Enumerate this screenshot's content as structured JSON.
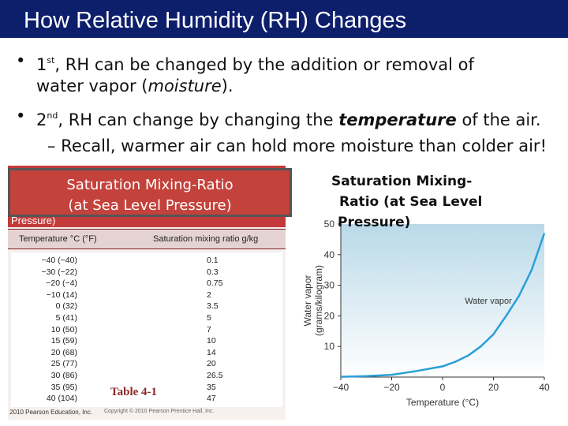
{
  "slide": {
    "title": "How Relative Humidity (RH) Changes",
    "bullets": [
      {
        "marker": "•",
        "ordinal": "1",
        "sup": "st",
        "rest": ", RH can be changed by the addition or removal of",
        "line2_pre": "water  vapor (",
        "line2_em": "moisture",
        "line2_post": ")."
      },
      {
        "marker": "•",
        "ordinal": "2",
        "sup": "nd",
        "pre": ", RH can change by changing the ",
        "em": "temperature",
        "post": " of the air."
      }
    ],
    "sub_bullet": "– Recall, warmer air can hold more moisture than colder air!"
  },
  "table": {
    "heading_label": "Saturation Mixing-Ratio\n(at Sea Level Pressure)",
    "band_label": "Pressure)",
    "col_temp": "Temperature °C (°F)",
    "col_ratio": "Saturation mixing ratio g/kg",
    "rows": [
      {
        "temp": "−40 (−40)",
        "ratio": "0.1"
      },
      {
        "temp": "−30 (−22)",
        "ratio": "0.3"
      },
      {
        "temp": "−20 (−4)",
        "ratio": "0.75"
      },
      {
        "temp": "−10 (14)",
        "ratio": "2"
      },
      {
        "temp": "0 (32)",
        "ratio": "3.5"
      },
      {
        "temp": "5 (41)",
        "ratio": "5"
      },
      {
        "temp": "10 (50)",
        "ratio": "7"
      },
      {
        "temp": "15 (59)",
        "ratio": "10"
      },
      {
        "temp": "20 (68)",
        "ratio": "14"
      },
      {
        "temp": "25 (77)",
        "ratio": "20"
      },
      {
        "temp": "30 (86)",
        "ratio": "26.5"
      },
      {
        "temp": "35 (95)",
        "ratio": "35"
      },
      {
        "temp": "40 (104)",
        "ratio": "47"
      }
    ],
    "caption": "Table 4-1",
    "copyright": "Copyright © 2010 Pearson Prentice Hall, Inc.",
    "copyright_left": "© 2010 Pearson Education, Inc."
  },
  "chart_heading": [
    "Saturation Mixing-",
    "Ratio  (at Sea Level",
    "Pressure)"
  ],
  "chart_data": {
    "type": "line",
    "xlabel": "Temperature (°C)",
    "ylabel": "Water vapor\n(grams/kilogram)",
    "xlim": [
      -40,
      40
    ],
    "ylim": [
      0,
      50
    ],
    "xticks": [
      -40,
      -20,
      0,
      20,
      40
    ],
    "yticks": [
      10,
      20,
      30,
      40,
      50
    ],
    "series": [
      {
        "name": "Water vapor",
        "x": [
          -40,
          -30,
          -20,
          -10,
          0,
          5,
          10,
          15,
          20,
          25,
          30,
          35,
          40
        ],
        "y": [
          0.1,
          0.3,
          0.75,
          2,
          3.5,
          5,
          7,
          10,
          14,
          20,
          26.5,
          35,
          47
        ]
      }
    ],
    "colors": {
      "line": "#2a9fd8",
      "fill_top": "#b9d9e8",
      "fill_bottom": "#ffffff"
    }
  }
}
